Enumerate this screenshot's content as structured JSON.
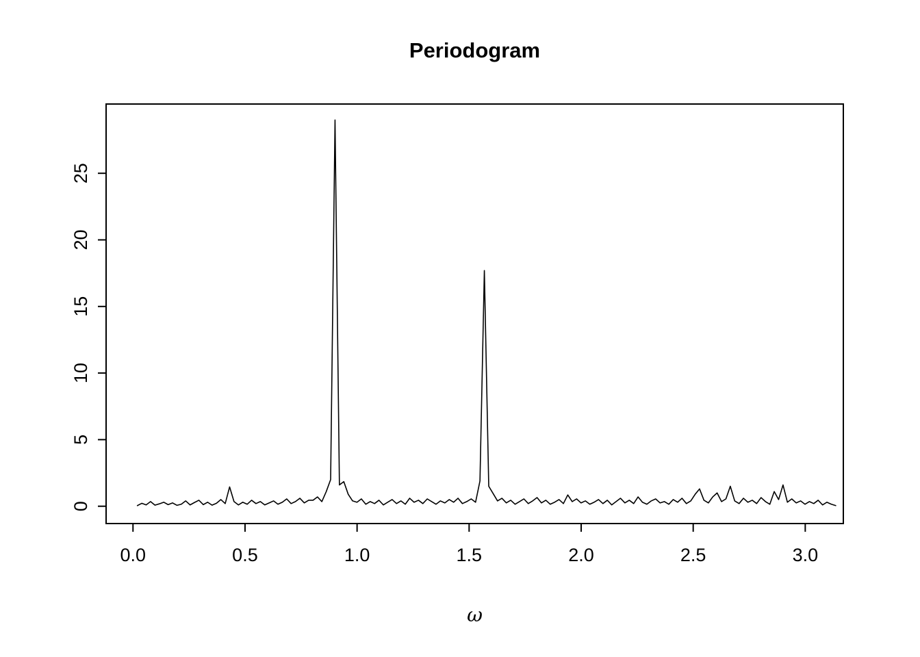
{
  "figure": {
    "background": "#ffffff",
    "foreground": "#000000"
  },
  "chart_data": {
    "type": "line",
    "title": "Periodogram",
    "xlabel": "ω",
    "ylabel": "",
    "grid": false,
    "legend": "none",
    "xlim": [
      -0.12,
      3.17
    ],
    "ylim": [
      -1.3,
      30.2
    ],
    "x_ticks": [
      0.0,
      0.5,
      1.0,
      1.5,
      2.0,
      2.5,
      3.0
    ],
    "x_tick_labels": [
      "0.0",
      "0.5",
      "1.0",
      "1.5",
      "2.0",
      "2.5",
      "3.0"
    ],
    "y_ticks": [
      0,
      5,
      10,
      15,
      20,
      25
    ],
    "y_tick_labels": [
      "0",
      "5",
      "10",
      "15",
      "20",
      "25"
    ],
    "line_color": "#000000",
    "peaks": [
      {
        "omega": 0.9,
        "value": 29.0
      },
      {
        "omega": 1.57,
        "value": 17.7
      }
    ],
    "series": {
      "name": "periodogram",
      "x_start": 0.0196,
      "x_step": 0.0196,
      "values": [
        0.05,
        0.22,
        0.1,
        0.35,
        0.08,
        0.18,
        0.3,
        0.12,
        0.25,
        0.07,
        0.15,
        0.4,
        0.1,
        0.28,
        0.45,
        0.12,
        0.3,
        0.08,
        0.22,
        0.5,
        0.2,
        1.45,
        0.35,
        0.1,
        0.3,
        0.15,
        0.45,
        0.2,
        0.35,
        0.1,
        0.25,
        0.4,
        0.15,
        0.3,
        0.55,
        0.2,
        0.35,
        0.6,
        0.25,
        0.45,
        0.45,
        0.7,
        0.35,
        1.1,
        2.0,
        29.0,
        1.6,
        1.85,
        0.9,
        0.4,
        0.3,
        0.55,
        0.15,
        0.35,
        0.2,
        0.45,
        0.1,
        0.3,
        0.5,
        0.2,
        0.4,
        0.15,
        0.6,
        0.3,
        0.45,
        0.2,
        0.55,
        0.35,
        0.15,
        0.4,
        0.25,
        0.5,
        0.3,
        0.6,
        0.2,
        0.35,
        0.55,
        0.3,
        1.9,
        17.7,
        1.5,
        0.95,
        0.4,
        0.6,
        0.25,
        0.45,
        0.15,
        0.35,
        0.55,
        0.2,
        0.4,
        0.65,
        0.25,
        0.45,
        0.15,
        0.3,
        0.5,
        0.2,
        0.85,
        0.35,
        0.55,
        0.25,
        0.4,
        0.15,
        0.3,
        0.5,
        0.2,
        0.45,
        0.1,
        0.35,
        0.6,
        0.25,
        0.45,
        0.2,
        0.7,
        0.3,
        0.15,
        0.4,
        0.55,
        0.25,
        0.35,
        0.15,
        0.5,
        0.3,
        0.6,
        0.2,
        0.4,
        0.9,
        1.3,
        0.45,
        0.25,
        0.7,
        1.0,
        0.35,
        0.55,
        1.5,
        0.4,
        0.2,
        0.6,
        0.3,
        0.45,
        0.2,
        0.65,
        0.35,
        0.15,
        1.1,
        0.5,
        1.6,
        0.3,
        0.55,
        0.25,
        0.4,
        0.15,
        0.35,
        0.2,
        0.45,
        0.1,
        0.3,
        0.15,
        0.05
      ]
    }
  }
}
